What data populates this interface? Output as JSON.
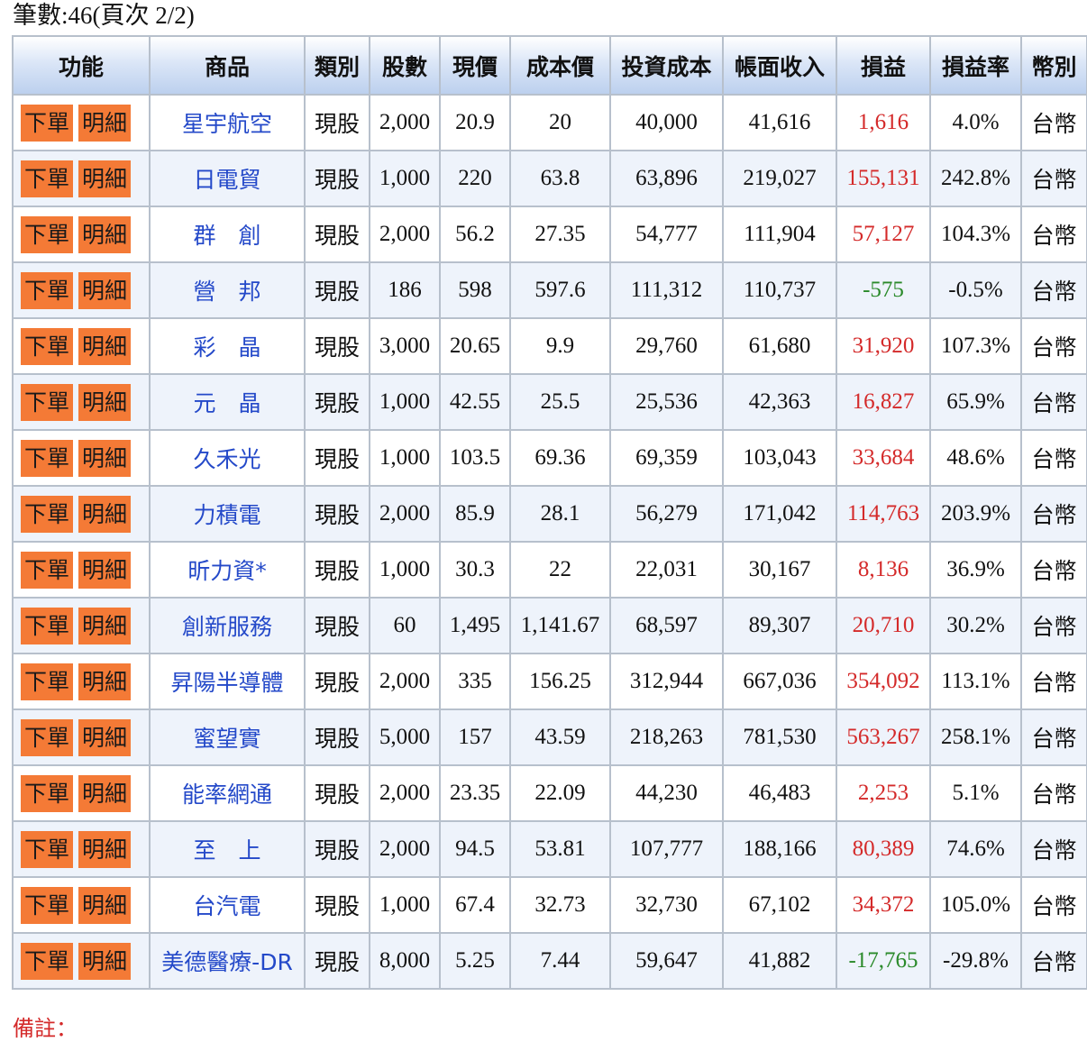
{
  "record_count": "筆數:46(頁次 2/2)",
  "columns": [
    "功能",
    "商品",
    "類別",
    "股數",
    "現價",
    "成本價",
    "投資成本",
    "帳面收入",
    "損益",
    "損益率",
    "幣別"
  ],
  "buttons": {
    "order": "下單",
    "detail": "明細"
  },
  "colors": {
    "gain": "#d42a2a",
    "loss": "#2a8a2a",
    "button": "#f47a36",
    "link": "#2449c9"
  },
  "rows": [
    {
      "name": "星宇航空",
      "type": "現股",
      "shares": "2,000",
      "price": "20.9",
      "cost_price": "20",
      "invest_cost": "40,000",
      "book_income": "41,616",
      "pnl": "1,616",
      "pnl_rate": "4.0%",
      "currency": "台幣",
      "sign": "pos"
    },
    {
      "name": "日電貿",
      "type": "現股",
      "shares": "1,000",
      "price": "220",
      "cost_price": "63.8",
      "invest_cost": "63,896",
      "book_income": "219,027",
      "pnl": "155,131",
      "pnl_rate": "242.8%",
      "currency": "台幣",
      "sign": "pos"
    },
    {
      "name": "群　創",
      "type": "現股",
      "shares": "2,000",
      "price": "56.2",
      "cost_price": "27.35",
      "invest_cost": "54,777",
      "book_income": "111,904",
      "pnl": "57,127",
      "pnl_rate": "104.3%",
      "currency": "台幣",
      "sign": "pos"
    },
    {
      "name": "營　邦",
      "type": "現股",
      "shares": "186",
      "price": "598",
      "cost_price": "597.6",
      "invest_cost": "111,312",
      "book_income": "110,737",
      "pnl": "-575",
      "pnl_rate": "-0.5%",
      "currency": "台幣",
      "sign": "neg"
    },
    {
      "name": "彩　晶",
      "type": "現股",
      "shares": "3,000",
      "price": "20.65",
      "cost_price": "9.9",
      "invest_cost": "29,760",
      "book_income": "61,680",
      "pnl": "31,920",
      "pnl_rate": "107.3%",
      "currency": "台幣",
      "sign": "pos"
    },
    {
      "name": "元　晶",
      "type": "現股",
      "shares": "1,000",
      "price": "42.55",
      "cost_price": "25.5",
      "invest_cost": "25,536",
      "book_income": "42,363",
      "pnl": "16,827",
      "pnl_rate": "65.9%",
      "currency": "台幣",
      "sign": "pos"
    },
    {
      "name": "久禾光",
      "type": "現股",
      "shares": "1,000",
      "price": "103.5",
      "cost_price": "69.36",
      "invest_cost": "69,359",
      "book_income": "103,043",
      "pnl": "33,684",
      "pnl_rate": "48.6%",
      "currency": "台幣",
      "sign": "pos"
    },
    {
      "name": "力積電",
      "type": "現股",
      "shares": "2,000",
      "price": "85.9",
      "cost_price": "28.1",
      "invest_cost": "56,279",
      "book_income": "171,042",
      "pnl": "114,763",
      "pnl_rate": "203.9%",
      "currency": "台幣",
      "sign": "pos"
    },
    {
      "name": "昕力資*",
      "type": "現股",
      "shares": "1,000",
      "price": "30.3",
      "cost_price": "22",
      "invest_cost": "22,031",
      "book_income": "30,167",
      "pnl": "8,136",
      "pnl_rate": "36.9%",
      "currency": "台幣",
      "sign": "pos"
    },
    {
      "name": "創新服務",
      "type": "現股",
      "shares": "60",
      "price": "1,495",
      "cost_price": "1,141.67",
      "invest_cost": "68,597",
      "book_income": "89,307",
      "pnl": "20,710",
      "pnl_rate": "30.2%",
      "currency": "台幣",
      "sign": "pos"
    },
    {
      "name": "昇陽半導體",
      "type": "現股",
      "shares": "2,000",
      "price": "335",
      "cost_price": "156.25",
      "invest_cost": "312,944",
      "book_income": "667,036",
      "pnl": "354,092",
      "pnl_rate": "113.1%",
      "currency": "台幣",
      "sign": "pos"
    },
    {
      "name": "蜜望實",
      "type": "現股",
      "shares": "5,000",
      "price": "157",
      "cost_price": "43.59",
      "invest_cost": "218,263",
      "book_income": "781,530",
      "pnl": "563,267",
      "pnl_rate": "258.1%",
      "currency": "台幣",
      "sign": "pos"
    },
    {
      "name": "能率網通",
      "type": "現股",
      "shares": "2,000",
      "price": "23.35",
      "cost_price": "22.09",
      "invest_cost": "44,230",
      "book_income": "46,483",
      "pnl": "2,253",
      "pnl_rate": "5.1%",
      "currency": "台幣",
      "sign": "pos"
    },
    {
      "name": "至　上",
      "type": "現股",
      "shares": "2,000",
      "price": "94.5",
      "cost_price": "53.81",
      "invest_cost": "107,777",
      "book_income": "188,166",
      "pnl": "80,389",
      "pnl_rate": "74.6%",
      "currency": "台幣",
      "sign": "pos"
    },
    {
      "name": "台汽電",
      "type": "現股",
      "shares": "1,000",
      "price": "67.4",
      "cost_price": "32.73",
      "invest_cost": "32,730",
      "book_income": "67,102",
      "pnl": "34,372",
      "pnl_rate": "105.0%",
      "currency": "台幣",
      "sign": "pos"
    },
    {
      "name": "美德醫療-DR",
      "type": "現股",
      "shares": "8,000",
      "price": "5.25",
      "cost_price": "7.44",
      "invest_cost": "59,647",
      "book_income": "41,882",
      "pnl": "-17,765",
      "pnl_rate": "-29.8%",
      "currency": "台幣",
      "sign": "neg"
    }
  ],
  "note": "備註："
}
